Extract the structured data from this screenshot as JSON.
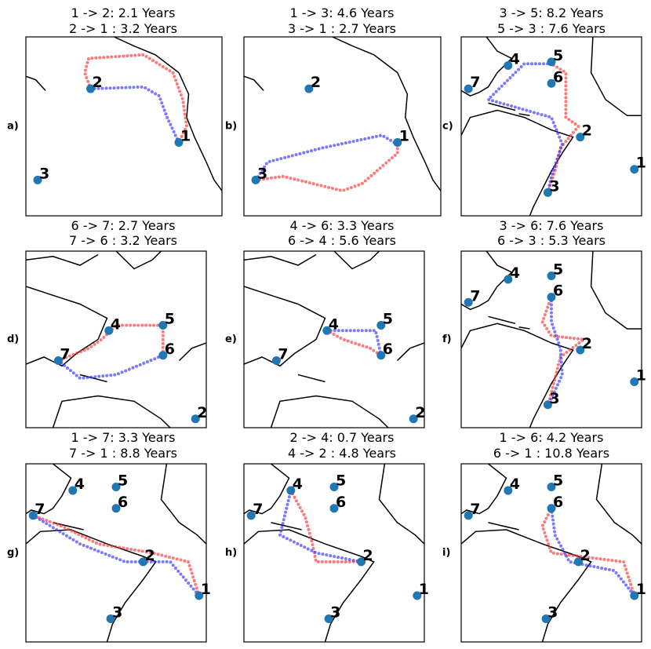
{
  "panels": [
    {
      "label": "a)",
      "title": [
        "1 -> 2: 2.1 Years",
        "2 -> 1 : 3.2 Years"
      ],
      "sites": [
        "1",
        "2",
        "3"
      ]
    },
    {
      "label": "b)",
      "title": [
        "1 -> 3: 4.6 Years",
        "3 -> 1 : 2.7 Years"
      ],
      "sites": [
        "1",
        "2",
        "3"
      ]
    },
    {
      "label": "c)",
      "title": [
        "3 -> 5: 8.2 Years",
        "5 -> 3 : 7.6 Years"
      ],
      "sites": [
        "1",
        "2",
        "3",
        "4",
        "5",
        "6",
        "7"
      ]
    },
    {
      "label": "d)",
      "title": [
        "6 -> 7: 2.7 Years",
        "7 -> 6 : 3.2 Years"
      ],
      "sites": [
        "2",
        "4",
        "5",
        "6",
        "7"
      ]
    },
    {
      "label": "e)",
      "title": [
        "4 -> 6: 3.3 Years",
        "6 -> 4 : 5.6 Years"
      ],
      "sites": [
        "2",
        "4",
        "5",
        "6",
        "7"
      ]
    },
    {
      "label": "f)",
      "title": [
        "3 -> 6: 7.6 Years",
        "6 -> 3 : 5.3 Years"
      ],
      "sites": [
        "1",
        "2",
        "3",
        "4",
        "5",
        "6",
        "7"
      ]
    },
    {
      "label": "g)",
      "title": [
        "1 -> 7: 3.3 Years",
        "7 -> 1 : 8.8 Years"
      ],
      "sites": [
        "1",
        "2",
        "3",
        "4",
        "5",
        "6",
        "7"
      ]
    },
    {
      "label": "h)",
      "title": [
        "2 -> 4: 0.7 Years",
        "4 -> 2 : 4.8 Years"
      ],
      "sites": [
        "1",
        "2",
        "3",
        "4",
        "5",
        "6",
        "7"
      ]
    },
    {
      "label": "i)",
      "title": [
        "1 -> 6: 4.2 Years",
        "6 -> 1 : 10.8 Years"
      ],
      "sites": [
        "1",
        "2",
        "3",
        "4",
        "5",
        "6",
        "7"
      ]
    }
  ]
}
